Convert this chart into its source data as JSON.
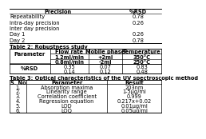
{
  "top_table": {
    "col1_header": "Precision",
    "col2_header": "%RSD",
    "rows": [
      [
        "Repeatability",
        "0.78"
      ],
      [
        "Intra-day precision",
        "0.26"
      ],
      [
        "Inter day precision",
        ""
      ],
      [
        "Day 1",
        "0.26"
      ],
      [
        "Day 2",
        "0.78"
      ]
    ]
  },
  "table2_title": "Table 2: Robustness study",
  "table2": {
    "rsd_rows": [
      [
        "0.35",
        "0.07",
        "0.83"
      ],
      [
        "0.14",
        "0.12",
        "0.48"
      ]
    ]
  },
  "table3_title": "Table 3: Optical characteristics of the UV spectroscopic method",
  "table3": {
    "headers": [
      "S. No",
      "Parameter",
      "Result"
    ],
    "rows": [
      [
        "1.",
        "Absorption maxima",
        "203nm"
      ],
      [
        "2.",
        "Linearity range",
        "1-5μg/ml"
      ],
      [
        "3.",
        "Correlation coefficient",
        "0.999"
      ],
      [
        "4.",
        "Regression equation",
        "0.217x+0.02"
      ],
      [
        "5.",
        "LOD",
        "0.01μg/ml"
      ],
      [
        "6.",
        "LOQ",
        "0.05μg/ml"
      ]
    ]
  },
  "bg_color": "#ffffff",
  "line_color": "#000000",
  "fs": 4.8
}
